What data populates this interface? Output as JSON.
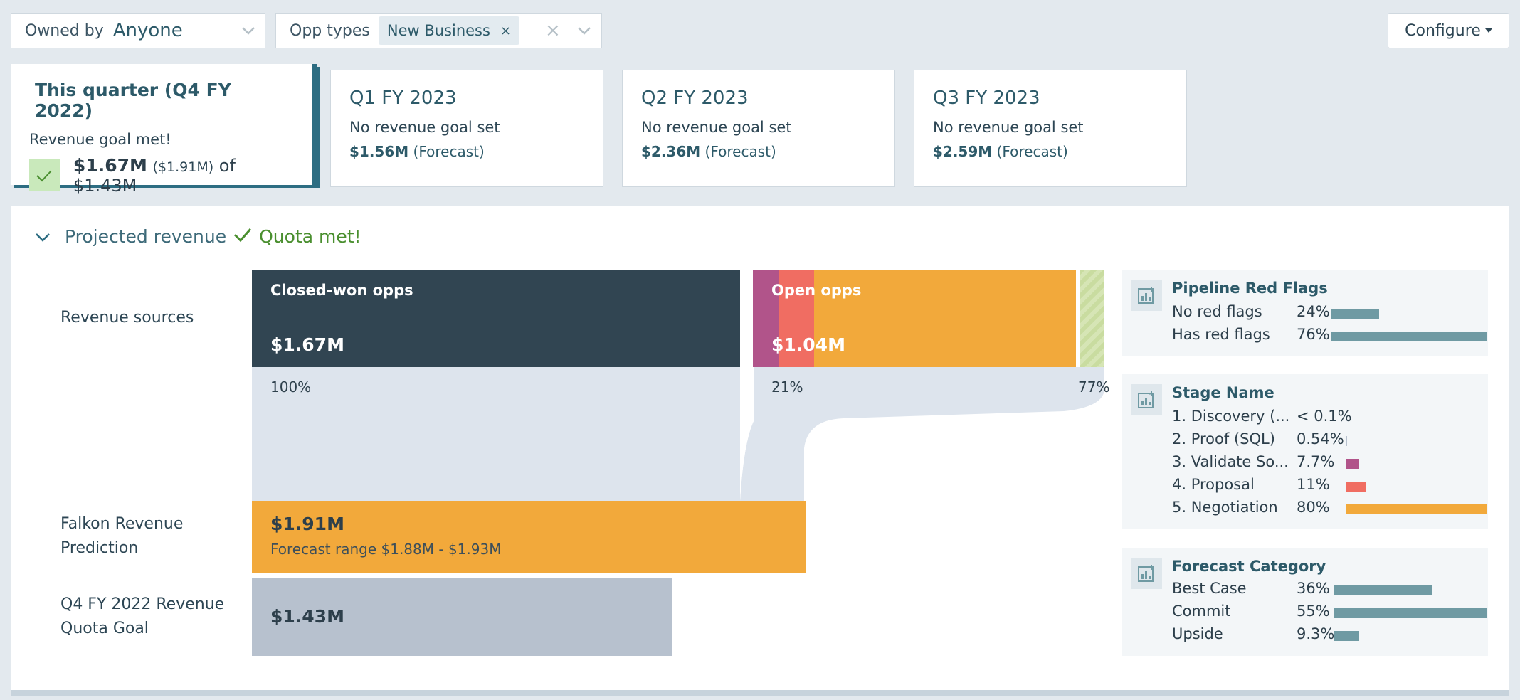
{
  "filters": {
    "owner": {
      "label": "Owned by",
      "value": "Anyone"
    },
    "opp_types": {
      "label": "Opp types",
      "chip": "New Business",
      "chip_remove": "×",
      "clear": "×"
    }
  },
  "configure": {
    "label": "Configure"
  },
  "quarters": [
    {
      "title": "This quarter (Q4 FY 2022)",
      "status": "Revenue goal met!",
      "amount": "$1.67M",
      "forecast": "($1.91M)",
      "of_text": "of $1.43M"
    },
    {
      "title": "Q1 FY 2023",
      "status": "No revenue goal set",
      "amount": "$1.56M",
      "note": "(Forecast)"
    },
    {
      "title": "Q2 FY 2023",
      "status": "No revenue goal set",
      "amount": "$2.36M",
      "note": "(Forecast)"
    },
    {
      "title": "Q3 FY 2023",
      "status": "No revenue goal set",
      "amount": "$2.59M",
      "note": "(Forecast)"
    }
  ],
  "projected": {
    "title": "Projected revenue",
    "quota_status": "Quota met!"
  },
  "rows": {
    "revenue_sources": "Revenue sources",
    "prediction": "Falkon Revenue Prediction",
    "quota_goal": "Q4 FY 2022 Revenue Quota Goal"
  },
  "sources": {
    "closed": {
      "label": "Closed-won opps",
      "value": "$1.67M",
      "pct": "100%"
    },
    "open": {
      "label": "Open opps",
      "value": "$1.04M",
      "pct": "21%"
    },
    "other": {
      "pct": "77%"
    }
  },
  "prediction": {
    "value": "$1.91M",
    "range": "Forecast range $1.88M - $1.93M"
  },
  "quota": {
    "value": "$1.43M"
  },
  "side": {
    "red_flags": {
      "title": "Pipeline Red Flags",
      "items": [
        {
          "label": "No red flags",
          "pct": "24%",
          "fraction": 0.24
        },
        {
          "label": "Has red flags",
          "pct": "76%",
          "fraction": 0.76
        }
      ]
    },
    "stage": {
      "title": "Stage Name",
      "items": [
        {
          "label": "1. Discovery (...",
          "pct": "< 0.1%",
          "fraction": 0.0
        },
        {
          "label": "2. Proof (SQL)",
          "pct": "0.54%",
          "fraction": 0.0054
        },
        {
          "label": "3. Validate So...",
          "pct": "7.7%",
          "fraction": 0.077
        },
        {
          "label": "4. Proposal",
          "pct": "11%",
          "fraction": 0.11
        },
        {
          "label": "5. Negotiation",
          "pct": "80%",
          "fraction": 0.8
        }
      ]
    },
    "forecast": {
      "title": "Forecast Category",
      "items": [
        {
          "label": "Best Case",
          "pct": "36%",
          "fraction": 0.36
        },
        {
          "label": "Commit",
          "pct": "55%",
          "fraction": 0.55
        },
        {
          "label": "Upside",
          "pct": "9.3%",
          "fraction": 0.093
        }
      ]
    }
  },
  "colors": {
    "closed": "#314552",
    "open": "#f2a93b",
    "stage3": "#b1548a",
    "stage4": "#f06d62",
    "other": "#c9dca0",
    "flow": "#dde4ed",
    "quota": "#b7c1ce",
    "bar": "#6f9aa3"
  }
}
